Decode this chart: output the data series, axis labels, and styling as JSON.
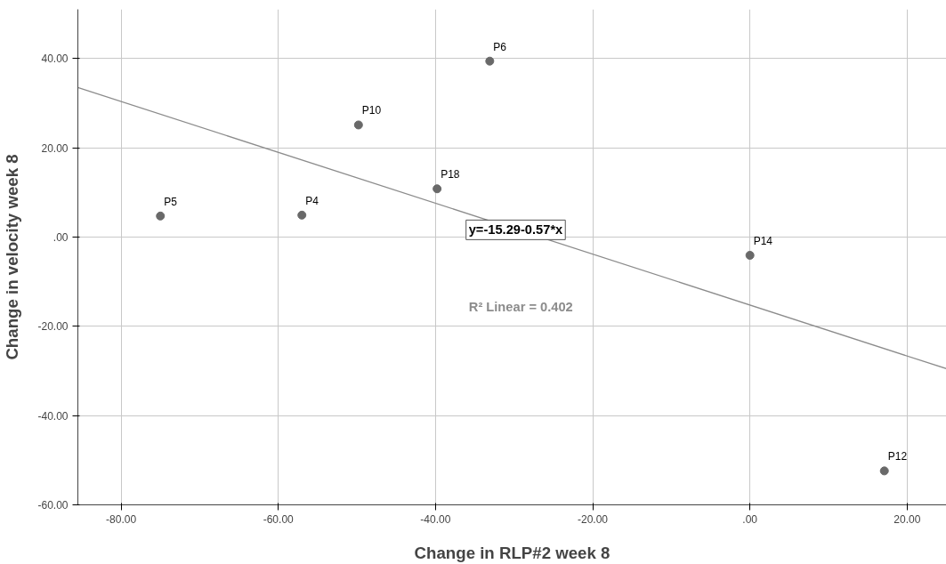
{
  "chart_data": {
    "type": "scatter",
    "xlabel": "Change in RLP#2 week 8",
    "ylabel": "Change in velocity week 8",
    "xlim": [
      -85.5,
      25
    ],
    "ylim": [
      -60,
      51
    ],
    "xticks": [
      {
        "value": -80,
        "label": "-80.00"
      },
      {
        "value": -60,
        "label": "-60.00"
      },
      {
        "value": -40,
        "label": "-40.00"
      },
      {
        "value": -20,
        "label": "-20.00"
      },
      {
        "value": 0,
        "label": ".00"
      },
      {
        "value": 20,
        "label": "20.00"
      }
    ],
    "yticks": [
      {
        "value": -60,
        "label": "-60.00"
      },
      {
        "value": -40,
        "label": "-40.00"
      },
      {
        "value": -20,
        "label": "-20.00"
      },
      {
        "value": 0,
        "label": ".00"
      },
      {
        "value": 20,
        "label": "20.00"
      },
      {
        "value": 40,
        "label": "40.00"
      }
    ],
    "grid": true,
    "marker": "circle",
    "series": [
      {
        "color": "#696969",
        "x": [
          -75,
          -57,
          -49.8,
          -39.8,
          -33.1,
          0,
          17.1
        ],
        "values": [
          4.7,
          4.9,
          25.1,
          10.8,
          39.4,
          -4.1,
          -52.4
        ],
        "value_labels": [
          "P5",
          "P4",
          "P10",
          "P18",
          "P6",
          "P14",
          "P12"
        ]
      },
      {
        "type": "line",
        "color": "#8c8c8c",
        "marker": "none",
        "x": [
          -85.5,
          25
        ],
        "values": [
          33.5,
          -29.5
        ]
      }
    ],
    "annotations": [
      {
        "text": "y=-15.29-0.57*x",
        "x": -29.8,
        "y": 1.6
      },
      "R² Linear = 0.402"
    ]
  }
}
